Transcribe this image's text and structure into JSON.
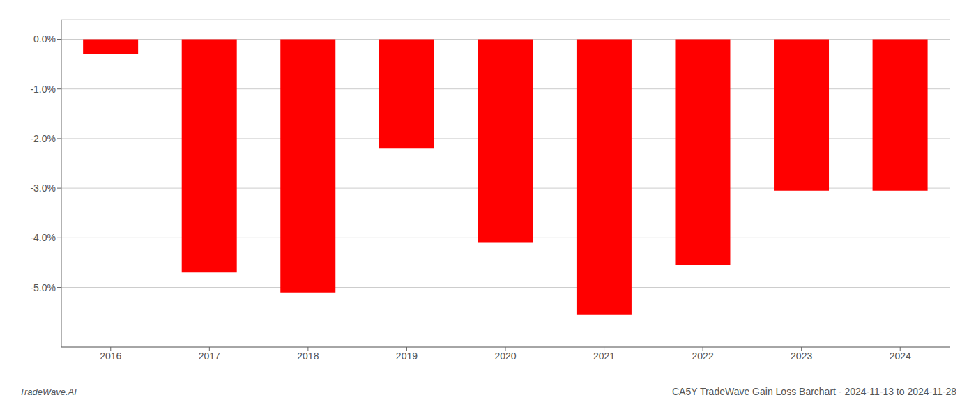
{
  "chart_data": {
    "type": "bar",
    "title": "CA5Y TradeWave Gain Loss Barchart - 2024-11-13 to 2024-11-28",
    "annotations": [
      "TradeWave.AI"
    ],
    "categories": [
      "2016",
      "2017",
      "2018",
      "2019",
      "2020",
      "2021",
      "2022",
      "2023",
      "2024"
    ],
    "values": [
      -0.3,
      -4.7,
      -5.1,
      -2.2,
      -4.1,
      -5.55,
      -4.55,
      -3.05,
      -3.05
    ],
    "color": "#ff0000",
    "ylim": [
      -6.2,
      0.4
    ],
    "yticks": [
      {
        "value": 0.0,
        "label": "0.0%"
      },
      {
        "value": -1.0,
        "label": "-1.0%"
      },
      {
        "value": -2.0,
        "label": "-2.0%"
      },
      {
        "value": -3.0,
        "label": "-3.0%"
      },
      {
        "value": -4.0,
        "label": "-4.0%"
      },
      {
        "value": -5.0,
        "label": "-5.0%"
      }
    ],
    "grid": true
  }
}
